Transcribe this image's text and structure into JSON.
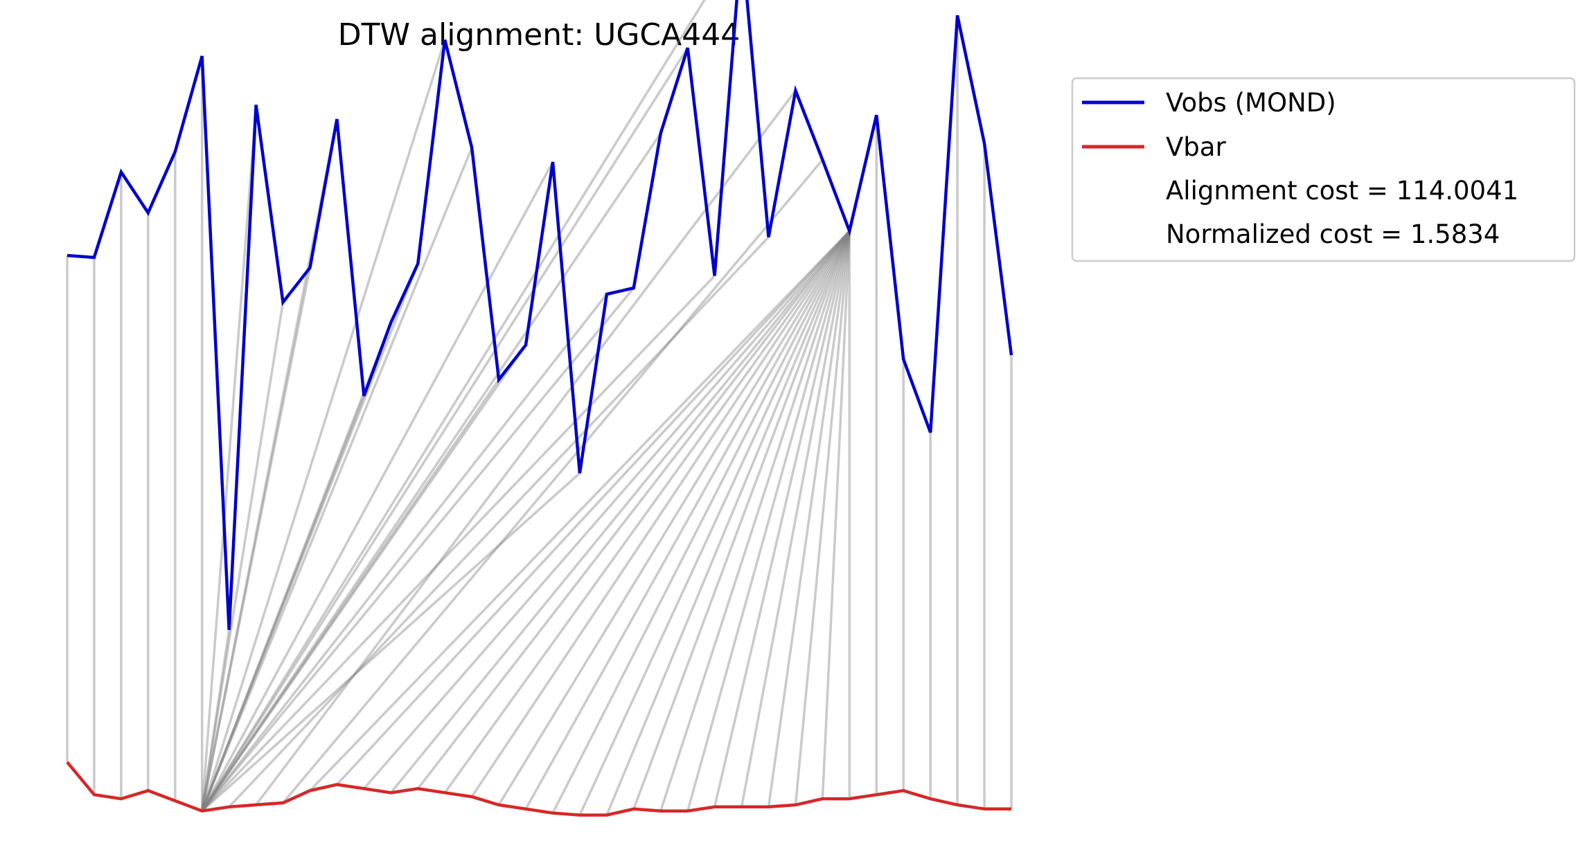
{
  "chart_data": {
    "type": "line",
    "title": "DTW alignment: UGCA444",
    "xlabel": "",
    "ylabel": "",
    "axes_visible": false,
    "grid": false,
    "legend_placement": "outside upper right",
    "series": [
      {
        "name": "Vobs (MOND)",
        "color": "#0000cc",
        "values": [
          73.5,
          73.4,
          77.6,
          75.6,
          78.6,
          83.3,
          55.1,
          80.9,
          71.2,
          72.9,
          80.2,
          66.6,
          70.2,
          73.1,
          84.1,
          78.8,
          67.4,
          69.1,
          78.1,
          62.8,
          71.6,
          71.9,
          79.5,
          83.7,
          72.5,
          89.0,
          74.4,
          81.6,
          78.2,
          74.7,
          80.4,
          68.4,
          64.8,
          85.3,
          79.0,
          68.6
        ]
      },
      {
        "name": "Vbar",
        "color": "#d62728",
        "values": [
          48.6,
          47.0,
          46.8,
          47.2,
          46.7,
          46.2,
          46.4,
          46.5,
          46.6,
          47.2,
          47.5,
          47.3,
          47.1,
          47.3,
          47.1,
          46.9,
          46.5,
          46.3,
          46.1,
          46.0,
          46.0,
          46.3,
          46.2,
          46.2,
          46.4,
          46.4,
          46.4,
          46.5,
          46.8,
          46.8,
          47.0,
          47.2,
          46.8,
          46.5,
          46.3,
          46.3
        ]
      }
    ],
    "alignment": {
      "color": "#808080",
      "pairs": [
        [
          0,
          0
        ],
        [
          1,
          1
        ],
        [
          2,
          2
        ],
        [
          3,
          3
        ],
        [
          4,
          4
        ],
        [
          5,
          5
        ],
        [
          6,
          5
        ],
        [
          7,
          5
        ],
        [
          8,
          5
        ],
        [
          9,
          5
        ],
        [
          10,
          5
        ],
        [
          11,
          5
        ],
        [
          12,
          5
        ],
        [
          13,
          5
        ],
        [
          14,
          5
        ],
        [
          15,
          5
        ],
        [
          16,
          5
        ],
        [
          17,
          5
        ],
        [
          18,
          5
        ],
        [
          19,
          5
        ],
        [
          20,
          5
        ],
        [
          21,
          5
        ],
        [
          22,
          5
        ],
        [
          23,
          5
        ],
        [
          24,
          5
        ],
        [
          25,
          5
        ],
        [
          26,
          6
        ],
        [
          27,
          7
        ],
        [
          28,
          8
        ],
        [
          29,
          9
        ],
        [
          29,
          10
        ],
        [
          29,
          11
        ],
        [
          29,
          12
        ],
        [
          29,
          13
        ],
        [
          29,
          14
        ],
        [
          29,
          15
        ],
        [
          29,
          16
        ],
        [
          29,
          17
        ],
        [
          29,
          18
        ],
        [
          29,
          19
        ],
        [
          29,
          20
        ],
        [
          29,
          21
        ],
        [
          29,
          22
        ],
        [
          29,
          23
        ],
        [
          29,
          24
        ],
        [
          29,
          25
        ],
        [
          29,
          26
        ],
        [
          29,
          27
        ],
        [
          29,
          28
        ],
        [
          29,
          29
        ],
        [
          30,
          30
        ],
        [
          31,
          31
        ],
        [
          32,
          32
        ],
        [
          33,
          33
        ],
        [
          34,
          34
        ],
        [
          35,
          35
        ]
      ]
    },
    "legend": [
      {
        "label": "Vobs (MOND)",
        "color": "#0000cc",
        "marker": "line"
      },
      {
        "label": "Vbar",
        "color": "#d62728",
        "marker": "line"
      },
      {
        "label": "Alignment cost = 114.0041",
        "marker": "none"
      },
      {
        "label": "Normalized cost = 1.5834",
        "marker": "none"
      }
    ]
  }
}
